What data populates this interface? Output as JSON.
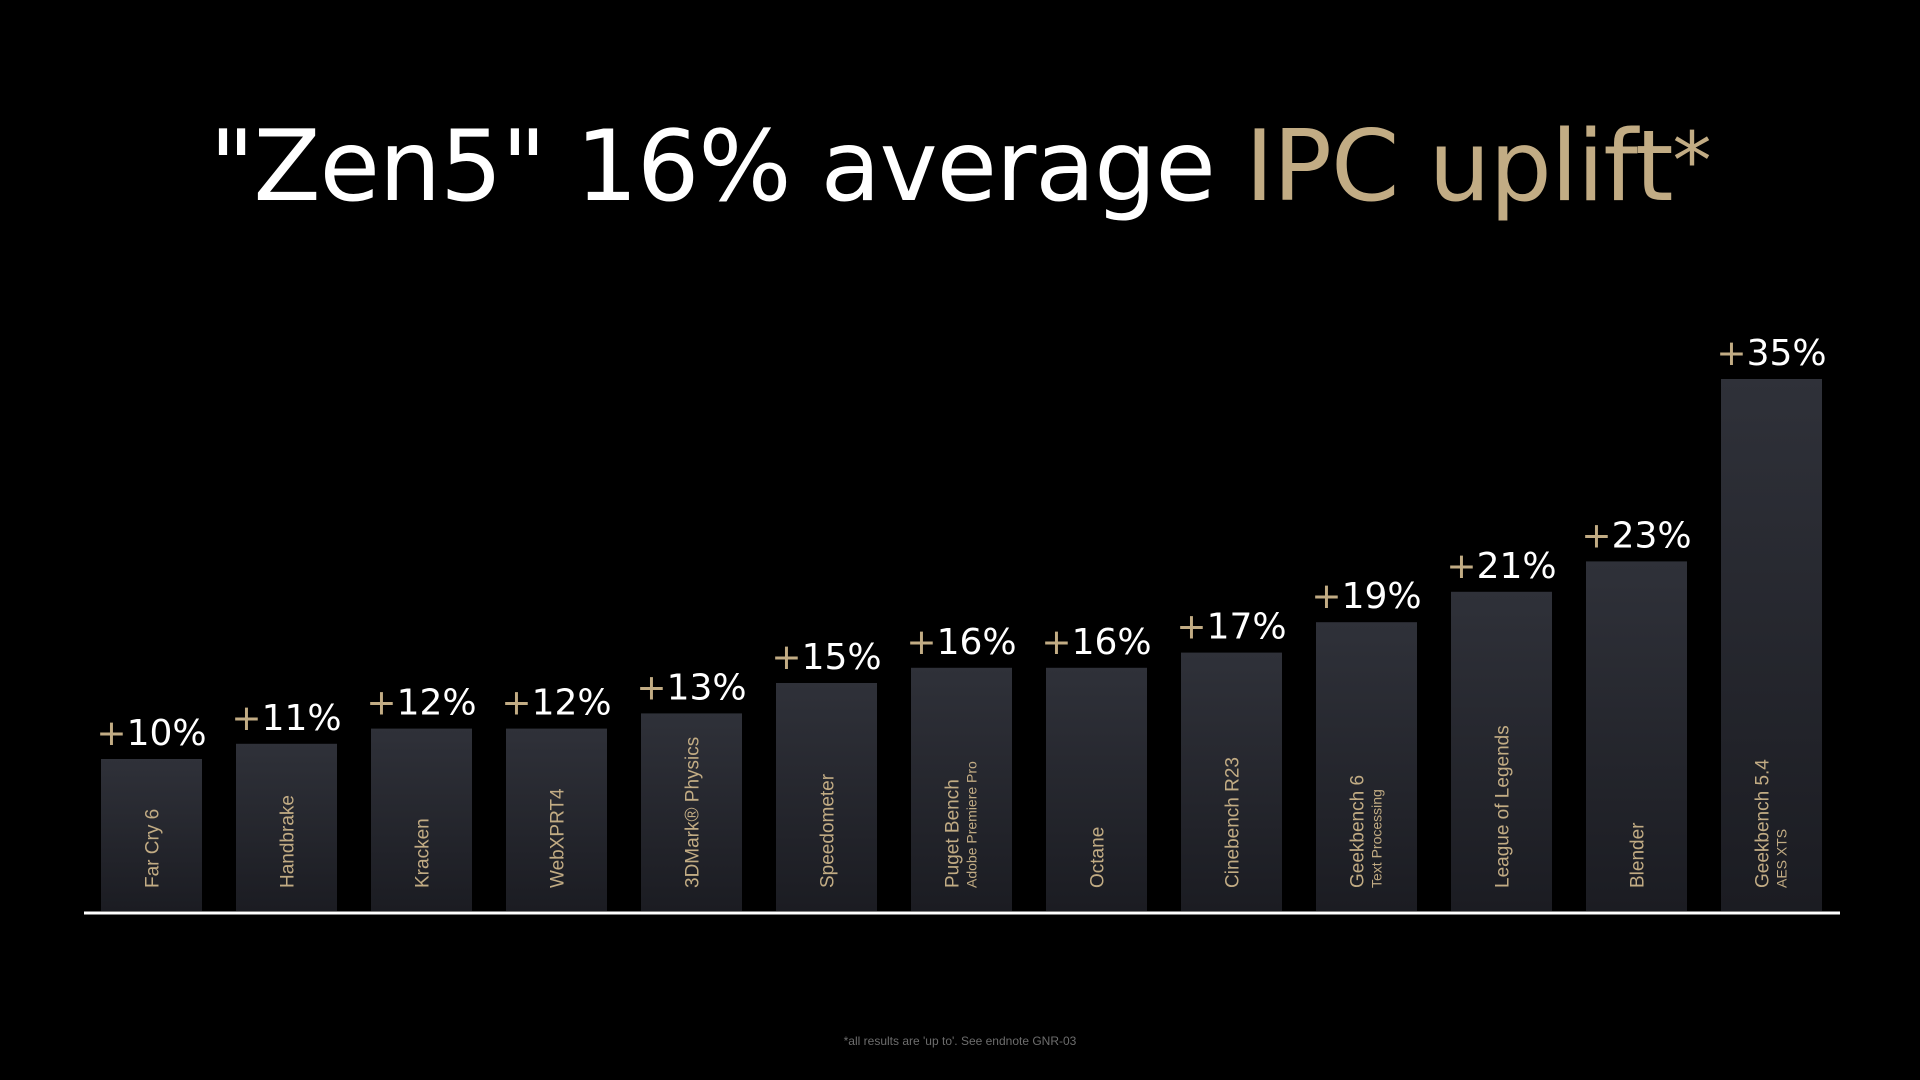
{
  "title": {
    "part1": "\"Zen5\" 16% average ",
    "part2": "IPC uplift",
    "star": "*"
  },
  "footnote": "*all results are 'up to'. See endnote GNR-03",
  "colors": {
    "background": "#000000",
    "title_white": "#ffffff",
    "accent_gold": "#c2ac84",
    "bar_top": "#2f3139",
    "bar_bottom": "#1b1c22",
    "baseline": "#ffffff",
    "footnote": "#6d6d6d"
  },
  "chart_data": {
    "type": "bar",
    "title": "",
    "xlabel": "",
    "ylabel": "",
    "ylim": [
      0,
      35
    ],
    "grid": false,
    "legend": "none",
    "categories": [
      [
        "Far Cry 6"
      ],
      [
        "Handbrake"
      ],
      [
        "Kracken"
      ],
      [
        "WebXPRT4"
      ],
      [
        "3DMark® Physics"
      ],
      [
        "Speedometer"
      ],
      [
        "Puget Bench",
        "Adobe Premiere Pro"
      ],
      [
        "Octane"
      ],
      [
        "Cinebench R23"
      ],
      [
        "Geekbench 6",
        "Text Processing"
      ],
      [
        "League of Legends"
      ],
      [
        "Blender"
      ],
      [
        "Geekbench 5.4",
        "AES XTS"
      ]
    ],
    "value_labels": [
      "+10%",
      "+11%",
      "+12%",
      "+12%",
      "+13%",
      "+15%",
      "+16%",
      "+16%",
      "+17%",
      "+19%",
      "+21%",
      "+23%",
      "+35%"
    ],
    "values": [
      10,
      11,
      12,
      12,
      13,
      15,
      16,
      16,
      17,
      19,
      21,
      23,
      35
    ]
  }
}
